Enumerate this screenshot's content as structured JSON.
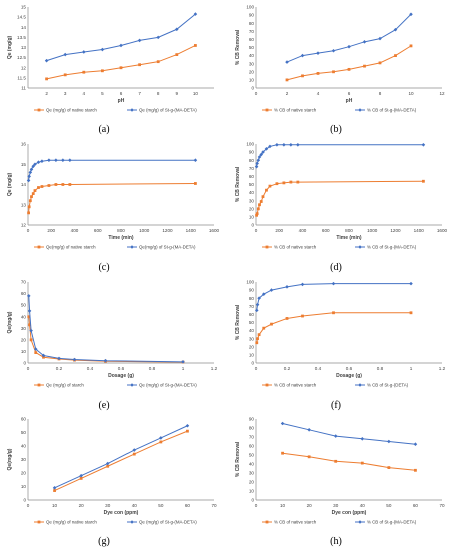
{
  "panels": [
    "(a)",
    "(b)",
    "(c)",
    "(d)",
    "(e)",
    "(f)",
    "(g)",
    "(h)"
  ],
  "colors": {
    "orange": "#ED7D31",
    "blue": "#4472C4",
    "axis": "#8c8c8c",
    "grid": "#d9d9d9",
    "text": "#404040"
  },
  "chart_data": [
    {
      "type": "line",
      "panel": "(a)",
      "xlabel": "pH",
      "ylabel": "Qe (mg/g)",
      "xlim": [
        1,
        11
      ],
      "ylim": [
        11,
        15
      ],
      "xticks": [
        2,
        3,
        4,
        5,
        6,
        7,
        8,
        9,
        10
      ],
      "yticks": [
        11,
        11.5,
        12,
        12.5,
        13,
        13.5,
        14,
        14.5,
        15
      ],
      "grid": false,
      "legend": "bottom",
      "series": [
        {
          "name": "Qe (mg/g) of native starch",
          "color": "orange",
          "x": [
            2,
            3,
            4,
            5,
            6,
            7,
            8,
            9,
            10
          ],
          "y": [
            11.45,
            11.65,
            11.78,
            11.85,
            12.0,
            12.15,
            12.3,
            12.65,
            13.1
          ]
        },
        {
          "name": "Qe (mg/g) of St-g-(MA-DETA)",
          "color": "blue",
          "x": [
            2,
            3,
            4,
            5,
            6,
            7,
            8,
            9,
            10
          ],
          "y": [
            12.35,
            12.65,
            12.78,
            12.9,
            13.1,
            13.35,
            13.5,
            13.9,
            14.65
          ]
        }
      ]
    },
    {
      "type": "line",
      "panel": "(b)",
      "xlabel": "pH",
      "ylabel": "% CB Removal",
      "xlim": [
        0,
        12
      ],
      "ylim": [
        0,
        100
      ],
      "xticks": [
        0,
        2,
        4,
        6,
        8,
        10,
        12
      ],
      "yticks": [
        0,
        10,
        20,
        30,
        40,
        50,
        60,
        70,
        80,
        90,
        100
      ],
      "grid": false,
      "legend": "bottom",
      "series": [
        {
          "name": "% CB of native starch",
          "color": "orange",
          "x": [
            2,
            3,
            4,
            5,
            6,
            7,
            8,
            9,
            10
          ],
          "y": [
            10,
            15,
            18,
            20,
            23,
            27,
            31,
            40,
            52
          ]
        },
        {
          "name": "% CB of St-g-(MA-DETA)",
          "color": "blue",
          "x": [
            2,
            3,
            4,
            5,
            6,
            7,
            8,
            9,
            10
          ],
          "y": [
            32,
            40,
            43,
            46,
            51,
            57,
            61,
            72,
            91
          ]
        }
      ]
    },
    {
      "type": "line",
      "panel": "(c)",
      "xlabel": "Time (min)",
      "ylabel": "Qe (mg/g)",
      "xlim": [
        0,
        1600
      ],
      "ylim": [
        12,
        16
      ],
      "xticks": [
        0,
        200,
        400,
        600,
        800,
        1000,
        1200,
        1400,
        1600
      ],
      "yticks": [
        12,
        13,
        14,
        15,
        16
      ],
      "grid": false,
      "legend": "bottom",
      "series": [
        {
          "name": "Qe(mg/g) of native starch",
          "color": "orange",
          "x": [
            5,
            10,
            20,
            30,
            45,
            60,
            90,
            120,
            180,
            240,
            300,
            360,
            1440
          ],
          "y": [
            12.6,
            12.9,
            13.2,
            13.4,
            13.55,
            13.7,
            13.85,
            13.9,
            13.95,
            14.0,
            14.0,
            14.0,
            14.05
          ]
        },
        {
          "name": "Qe(mg/g) of St-g-(MA-DETA)",
          "color": "blue",
          "x": [
            5,
            10,
            20,
            30,
            45,
            60,
            90,
            120,
            180,
            240,
            300,
            360,
            1440
          ],
          "y": [
            14.2,
            14.4,
            14.6,
            14.75,
            14.9,
            15.0,
            15.1,
            15.15,
            15.2,
            15.2,
            15.2,
            15.2,
            15.2
          ]
        }
      ]
    },
    {
      "type": "line",
      "panel": "(d)",
      "xlabel": "Time (min)",
      "ylabel": "% CB Removal",
      "xlim": [
        0,
        1600
      ],
      "ylim": [
        0,
        100
      ],
      "xticks": [
        0,
        200,
        400,
        600,
        800,
        1000,
        1200,
        1400,
        1600
      ],
      "yticks": [
        0,
        10,
        20,
        30,
        40,
        50,
        60,
        70,
        80,
        90,
        100
      ],
      "grid": false,
      "legend": "bottom",
      "series": [
        {
          "name": "% CB of native starch",
          "color": "orange",
          "x": [
            5,
            10,
            20,
            30,
            45,
            60,
            90,
            120,
            180,
            240,
            300,
            360,
            1440
          ],
          "y": [
            12,
            14,
            20,
            25,
            29,
            35,
            43,
            48,
            51,
            52,
            53,
            53,
            54
          ]
        },
        {
          "name": "% CB of St-g-(MA-DETA)",
          "color": "blue",
          "x": [
            5,
            10,
            20,
            30,
            45,
            60,
            90,
            120,
            180,
            240,
            300,
            360,
            1440
          ],
          "y": [
            72,
            76,
            80,
            84,
            87,
            90,
            94,
            97,
            99,
            99,
            99,
            99,
            99
          ]
        }
      ]
    },
    {
      "type": "line",
      "panel": "(e)",
      "xlabel": "Dosage (g)",
      "ylabel": "Qe(mg/g)",
      "xlim": [
        0,
        1.2
      ],
      "ylim": [
        0,
        70
      ],
      "xticks": [
        0,
        0.2,
        0.4,
        0.6,
        0.8,
        1,
        1.2
      ],
      "yticks": [
        0,
        10,
        20,
        30,
        40,
        50,
        60,
        70
      ],
      "grid": false,
      "legend": "bottom",
      "series": [
        {
          "name": "Qe (mg/g) of starch",
          "color": "orange",
          "x": [
            0.005,
            0.01,
            0.02,
            0.05,
            0.1,
            0.2,
            0.3,
            0.5,
            1.0
          ],
          "y": [
            40,
            33,
            20,
            9,
            5,
            3.5,
            2.5,
            1.5,
            0.8
          ]
        },
        {
          "name": "Qe (mg/g) of St-g-(MA-DETA)",
          "color": "blue",
          "x": [
            0.005,
            0.01,
            0.02,
            0.05,
            0.1,
            0.2,
            0.3,
            0.5,
            1.0
          ],
          "y": [
            58,
            45,
            28,
            12,
            6.5,
            4,
            3,
            2,
            1
          ]
        }
      ]
    },
    {
      "type": "line",
      "panel": "(f)",
      "xlabel": "Dosage (g)",
      "ylabel": "% CB Removal",
      "xlim": [
        0,
        1.2
      ],
      "ylim": [
        0,
        100
      ],
      "xticks": [
        0,
        0.2,
        0.4,
        0.6,
        0.8,
        1,
        1.2
      ],
      "yticks": [
        0,
        10,
        20,
        30,
        40,
        50,
        60,
        70,
        80,
        90,
        100
      ],
      "grid": false,
      "legend": "bottom",
      "series": [
        {
          "name": "% CB of native starch",
          "color": "orange",
          "x": [
            0.005,
            0.01,
            0.02,
            0.05,
            0.1,
            0.2,
            0.3,
            0.5,
            1.0
          ],
          "y": [
            25,
            30,
            35,
            43,
            48,
            55,
            58,
            62,
            62
          ]
        },
        {
          "name": "% CB of St-g-(DETA)",
          "color": "blue",
          "x": [
            0.005,
            0.01,
            0.02,
            0.05,
            0.1,
            0.2,
            0.3,
            0.5,
            1.0
          ],
          "y": [
            65,
            72,
            80,
            85,
            90,
            94,
            97,
            98,
            98
          ]
        }
      ]
    },
    {
      "type": "line",
      "panel": "(g)",
      "xlabel": "Dye con (ppm)",
      "ylabel": "Qe(mg/g)",
      "xlim": [
        0,
        70
      ],
      "ylim": [
        0,
        60
      ],
      "xticks": [
        0,
        10,
        20,
        30,
        40,
        50,
        60,
        70
      ],
      "yticks": [
        0,
        10,
        20,
        30,
        40,
        50,
        60
      ],
      "grid": false,
      "legend": "bottom",
      "series": [
        {
          "name": "Qe (mg/g) of native starch",
          "color": "orange",
          "x": [
            10,
            20,
            30,
            40,
            50,
            60
          ],
          "y": [
            7,
            16,
            25,
            34,
            43,
            51
          ]
        },
        {
          "name": "Qe (mg/g) of St-g-(MA-DETA)",
          "color": "blue",
          "x": [
            10,
            20,
            30,
            40,
            50,
            60
          ],
          "y": [
            9,
            18,
            27,
            37,
            46,
            55
          ]
        }
      ]
    },
    {
      "type": "line",
      "panel": "(h)",
      "xlabel": "Dye con (ppm)",
      "ylabel": "% CB Removal",
      "xlim": [
        0,
        70
      ],
      "ylim": [
        0,
        90
      ],
      "xticks": [
        0,
        10,
        20,
        30,
        40,
        50,
        60,
        70
      ],
      "yticks": [
        0,
        10,
        20,
        30,
        40,
        50,
        60,
        70,
        80,
        90
      ],
      "grid": false,
      "legend": "bottom",
      "series": [
        {
          "name": "% CB of native starch",
          "color": "orange",
          "x": [
            10,
            20,
            30,
            40,
            50,
            60
          ],
          "y": [
            52,
            48,
            43,
            41,
            36,
            33
          ]
        },
        {
          "name": "% CB of St-g-(MA-DETA)",
          "color": "blue",
          "x": [
            10,
            20,
            30,
            40,
            50,
            60
          ],
          "y": [
            85,
            78,
            71,
            68,
            65,
            62
          ]
        }
      ]
    }
  ]
}
